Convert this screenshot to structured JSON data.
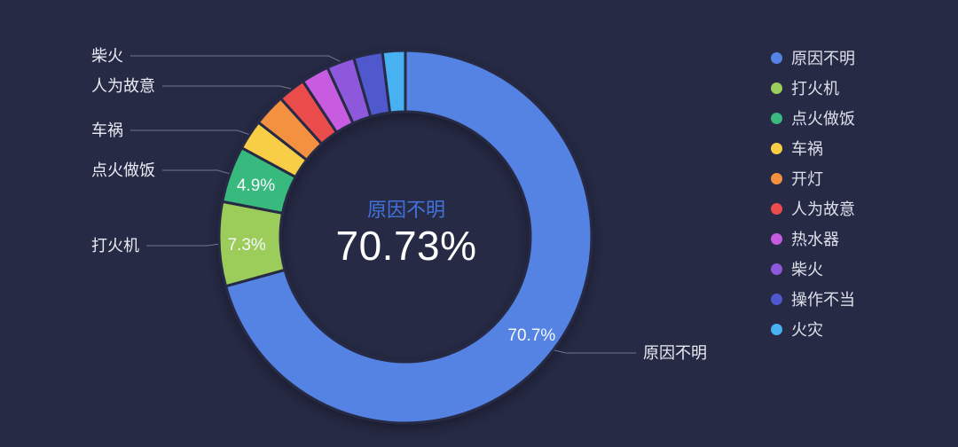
{
  "background": "#262a45",
  "chart_data": {
    "type": "pie",
    "subtype": "donut",
    "legend_position": "right",
    "grid": false,
    "items": [
      {
        "name": "原因不明",
        "value": 70.73,
        "color": "#5583e3",
        "inside_label": "70.7%",
        "callout": true
      },
      {
        "name": "打火机",
        "value": 7.3,
        "color": "#9ccd5a",
        "inside_label": "7.3%",
        "callout": true
      },
      {
        "name": "点火做饭",
        "value": 4.9,
        "color": "#39b97d",
        "inside_label": "4.9%",
        "callout": true
      },
      {
        "name": "车祸",
        "value": 2.6,
        "color": "#f7ce44",
        "callout": true
      },
      {
        "name": "开灯",
        "value": 2.8,
        "color": "#f3913f",
        "callout": false
      },
      {
        "name": "人为故意",
        "value": 2.4,
        "color": "#ea4b4b",
        "callout": true
      },
      {
        "name": "热水器",
        "value": 2.4,
        "color": "#c75be0",
        "callout": false
      },
      {
        "name": "柴火",
        "value": 2.4,
        "color": "#8d59db",
        "callout": true
      },
      {
        "name": "操作不当",
        "value": 2.5,
        "color": "#4f58cc",
        "callout": false
      },
      {
        "name": "火灾",
        "value": 1.97,
        "color": "#47b1f1",
        "callout": false
      }
    ],
    "center_label": {
      "name": "原因不明",
      "value": "70.73%"
    },
    "legend": [
      "原因不明",
      "打火机",
      "点火做饭",
      "车祸",
      "开灯",
      "人为故意",
      "热水器",
      "柴火",
      "操作不当",
      "火灾"
    ],
    "colors": {
      "background": "#262a45",
      "center_name": "#4273dc",
      "center_value": "#ffffff",
      "label_text": "#e9ecf4",
      "legend_text": "#dce0ea",
      "leader_line": "#757b93"
    }
  }
}
